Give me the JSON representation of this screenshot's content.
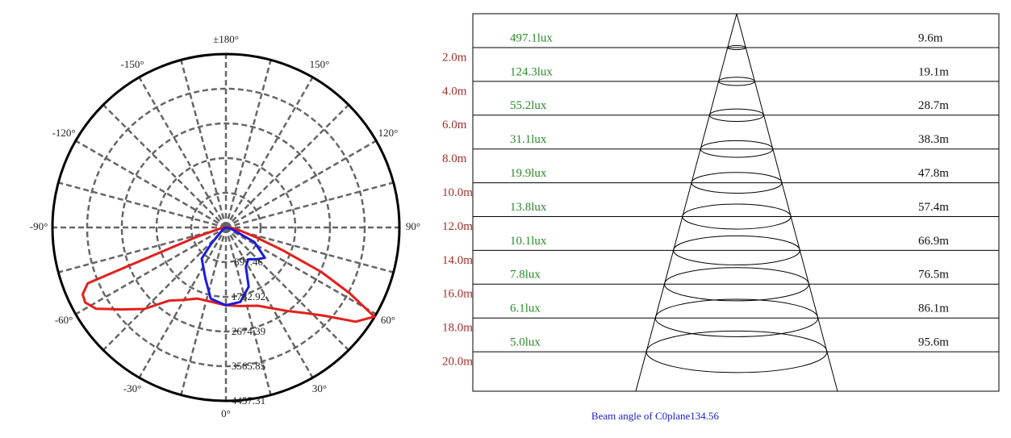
{
  "chart_data": {
    "type": "polar",
    "rlim": [
      0,
      4457.31
    ],
    "rticks": [
      891.46,
      1782.92,
      2674.39,
      3565.85,
      4457.31
    ],
    "angle_ticks": [
      {
        "value": 180,
        "label": "±180°"
      },
      {
        "value": -150,
        "label": "-150°"
      },
      {
        "value": 150,
        "label": "150°"
      },
      {
        "value": -120,
        "label": "-120°"
      },
      {
        "value": 120,
        "label": "120°"
      },
      {
        "value": -90,
        "label": "-90°"
      },
      {
        "value": 90,
        "label": "90°"
      },
      {
        "value": -60,
        "label": "-60°"
      },
      {
        "value": 60,
        "label": "60°"
      },
      {
        "value": -30,
        "label": "-30°"
      },
      {
        "value": 30,
        "label": "30°"
      },
      {
        "value": 0,
        "label": "0°"
      }
    ],
    "grid": true,
    "series": [
      {
        "color": "#e3201c",
        "x": [
          -90,
          -80,
          -72,
          -68,
          -65,
          -62,
          -58,
          -52,
          -45,
          -38,
          -30,
          -22,
          -10,
          0,
          10,
          22,
          30,
          36,
          42,
          48,
          54,
          59,
          62,
          65,
          68,
          72,
          80,
          90
        ],
        "values": [
          100,
          150,
          800,
          3830,
          4060,
          4100,
          3940,
          3420,
          2960,
          2390,
          2150,
          1970,
          1950,
          2000,
          2050,
          2170,
          2400,
          2650,
          2950,
          3390,
          4120,
          4450,
          3600,
          2700,
          1600,
          800,
          300,
          100
        ]
      },
      {
        "color": "#1c1ce0",
        "x": [
          -60,
          -42,
          -38,
          -22,
          -12,
          0,
          11,
          21,
          27,
          35,
          45,
          52,
          63,
          75
        ],
        "values": [
          80,
          560,
          1010,
          1410,
          1870,
          2000,
          1950,
          1630,
          1130,
          1000,
          1150,
          1270,
          820,
          150
        ]
      }
    ]
  },
  "beam_diagram": {
    "rows": [
      {
        "height": "2.0m",
        "lux": "497.1lux",
        "diameter": "9.6m"
      },
      {
        "height": "4.0m",
        "lux": "124.3lux",
        "diameter": "19.1m"
      },
      {
        "height": "6.0m",
        "lux": "55.2lux",
        "diameter": "28.7m"
      },
      {
        "height": "8.0m",
        "lux": "31.1lux",
        "diameter": "38.3m"
      },
      {
        "height": "10.0m",
        "lux": "19.9lux",
        "diameter": "47.8m"
      },
      {
        "height": "12.0m",
        "lux": "13.8lux",
        "diameter": "57.4m"
      },
      {
        "height": "14.0m",
        "lux": "10.1lux",
        "diameter": "66.9m"
      },
      {
        "height": "16.0m",
        "lux": "7.8lux",
        "diameter": "76.5m"
      },
      {
        "height": "18.0m",
        "lux": "6.1lux",
        "diameter": "86.1m"
      },
      {
        "height": "20.0m",
        "lux": "5.0lux",
        "diameter": "95.6m"
      }
    ],
    "caption": "Beam angle of C0plane134.56"
  }
}
